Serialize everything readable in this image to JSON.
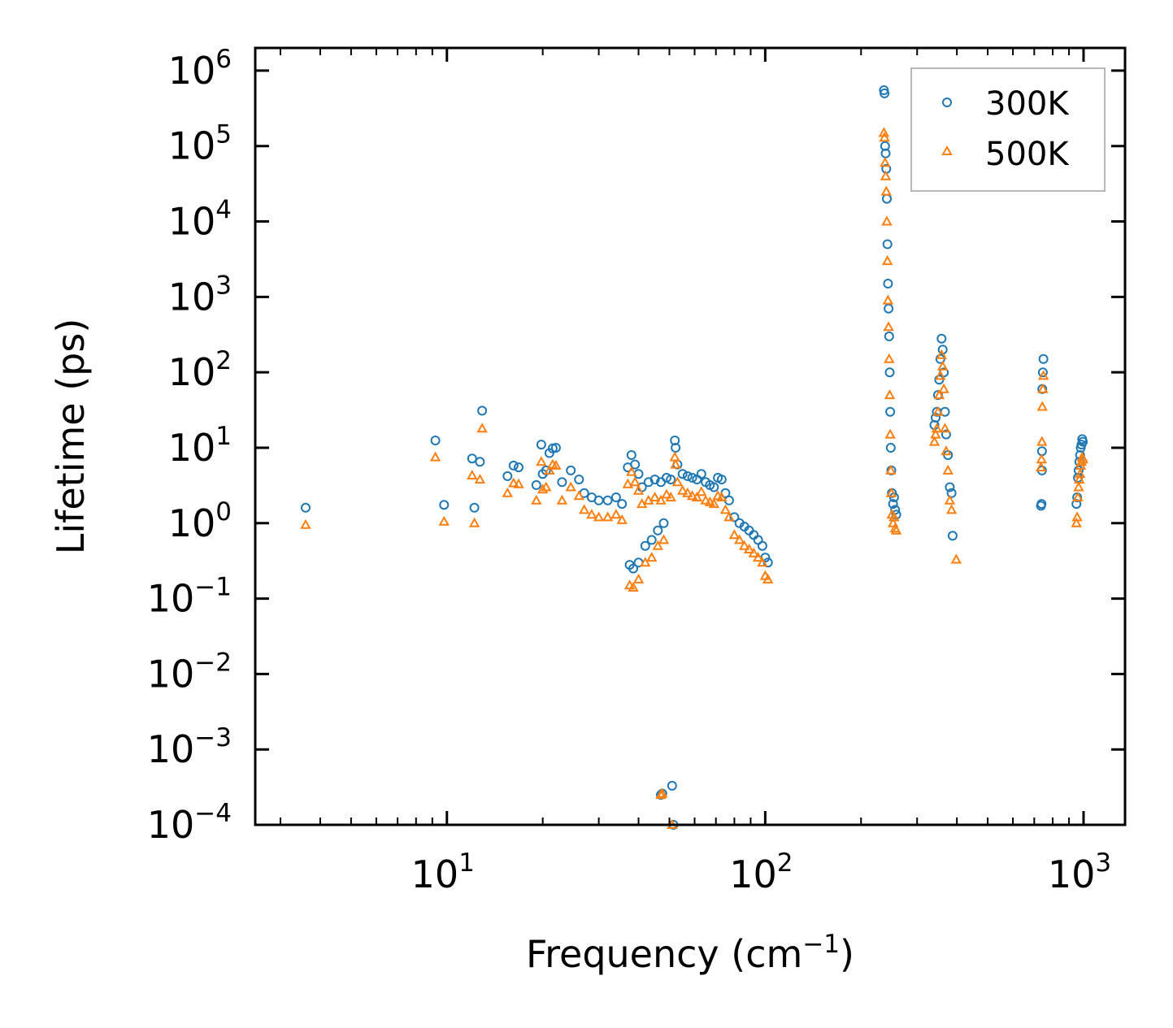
{
  "chart_data": {
    "type": "scatter",
    "xscale": "log",
    "yscale": "log",
    "xlim": [
      2.5,
      1350
    ],
    "ylim": [
      0.0001,
      2000000
    ],
    "xlabel": "Frequency (cm",
    "xlabel_sup": "−1",
    "xlabel_close": ")",
    "ylabel": "Lifetime (ps)",
    "x_ticks": [
      {
        "value": 10,
        "base": "10",
        "exp": "1"
      },
      {
        "value": 100,
        "base": "10",
        "exp": "2"
      },
      {
        "value": 1000,
        "base": "10",
        "exp": "3"
      }
    ],
    "y_ticks": [
      {
        "value": 1000000,
        "base": "10",
        "exp": "6"
      },
      {
        "value": 100000,
        "base": "10",
        "exp": "5"
      },
      {
        "value": 10000,
        "base": "10",
        "exp": "4"
      },
      {
        "value": 1000,
        "base": "10",
        "exp": "3"
      },
      {
        "value": 100,
        "base": "10",
        "exp": "2"
      },
      {
        "value": 10,
        "base": "10",
        "exp": "1"
      },
      {
        "value": 1,
        "base": "10",
        "exp": "0"
      },
      {
        "value": 0.1,
        "base": "10",
        "exp": "−1"
      },
      {
        "value": 0.01,
        "base": "10",
        "exp": "−2"
      },
      {
        "value": 0.001,
        "base": "10",
        "exp": "−3"
      },
      {
        "value": 0.0001,
        "base": "10",
        "exp": "−4"
      }
    ],
    "legend": {
      "placement": "top-right"
    },
    "series": [
      {
        "name": "300K",
        "color": "#1f77b4",
        "marker": "circle",
        "x": [
          3.6,
          9.2,
          9.8,
          12.0,
          12.2,
          12.7,
          12.9,
          15.5,
          16.2,
          16.8,
          19.1,
          19.8,
          20.0,
          20.5,
          21.0,
          21.5,
          22.0,
          23.0,
          24.5,
          26.0,
          27.0,
          28.5,
          30.0,
          32.0,
          34.0,
          35.5,
          37.0,
          38.0,
          39.0,
          40.0,
          41.0,
          43.0,
          45.0,
          47.0,
          49.0,
          50.5,
          52.0,
          52.3,
          53.0,
          55.0,
          57.0,
          59.0,
          61.0,
          63.0,
          65.0,
          67.0,
          69.0,
          71.0,
          73.0,
          75.0,
          77.0,
          80.0,
          83.0,
          86.0,
          89.0,
          92.0,
          95.0,
          98.0,
          100.0,
          102.0,
          37.5,
          38.5,
          40.0,
          42.0,
          44.0,
          46.0,
          48.0,
          47.0,
          47.5,
          51.0,
          51.5,
          236.0,
          237.0,
          238.0,
          239.0,
          240.0,
          241.0,
          242.0,
          243.0,
          244.0,
          245.0,
          246.0,
          247.0,
          248.0,
          249.0,
          250.0,
          252.0,
          254.0,
          256.0,
          258.0,
          340.0,
          343.0,
          346.0,
          349.0,
          352.0,
          355.0,
          358.0,
          361.0,
          364.0,
          367.0,
          370.0,
          375.0,
          380.0,
          385.0,
          388.0,
          735.0,
          738.0,
          740.0,
          742.0,
          745.0,
          748.0,
          740.0,
          950.0,
          955.0,
          960.0,
          965.0,
          970.0,
          975.0,
          980.0,
          985.0,
          990.0,
          995.0
        ],
        "y": [
          1.6,
          12.5,
          1.75,
          7.2,
          1.6,
          6.5,
          31,
          4.2,
          5.8,
          5.5,
          3.2,
          11,
          4.5,
          5.0,
          8.5,
          9.8,
          10.0,
          3.5,
          5.0,
          3.8,
          2.5,
          2.2,
          2.0,
          2.0,
          2.2,
          1.8,
          5.5,
          8.0,
          6.0,
          4.5,
          3.0,
          3.5,
          3.8,
          3.5,
          4.0,
          3.8,
          12.5,
          10.0,
          6.0,
          4.5,
          4.2,
          4.0,
          3.8,
          4.5,
          3.5,
          3.2,
          3.0,
          4.0,
          3.8,
          2.5,
          2.0,
          1.2,
          1.0,
          0.9,
          0.8,
          0.7,
          0.6,
          0.5,
          0.35,
          0.3,
          0.28,
          0.25,
          0.3,
          0.5,
          0.6,
          0.8,
          1.0,
          0.00025,
          0.00026,
          0.00033,
          0.0001,
          550000,
          500000,
          100000,
          80000,
          50000,
          20000,
          5000,
          1500,
          700,
          300,
          100,
          30,
          10,
          5,
          2.5,
          1.8,
          2.2,
          1.5,
          1.3,
          20,
          25,
          30,
          50,
          80,
          150,
          280,
          200,
          100,
          30,
          15,
          8,
          3,
          2.5,
          0.68,
          1.7,
          1.8,
          9,
          60,
          100,
          150,
          5,
          1.8,
          2.2,
          4,
          5,
          6.5,
          8,
          10,
          11,
          13,
          12
        ],
        "legend_label": "300K"
      },
      {
        "name": "500K",
        "color": "#ff7f0e",
        "marker": "triangle",
        "x": [
          3.6,
          9.2,
          9.8,
          12.0,
          12.2,
          12.7,
          12.9,
          15.5,
          16.2,
          16.8,
          19.1,
          19.8,
          20.0,
          20.5,
          21.0,
          21.5,
          22.0,
          23.0,
          24.5,
          26.0,
          27.0,
          28.5,
          30.0,
          32.0,
          34.0,
          35.5,
          37.0,
          38.0,
          39.0,
          40.0,
          41.0,
          43.0,
          45.0,
          47.0,
          49.0,
          50.5,
          52.0,
          52.3,
          53.0,
          55.0,
          57.0,
          59.0,
          61.0,
          63.0,
          65.0,
          67.0,
          69.0,
          71.0,
          73.0,
          75.0,
          77.0,
          80.0,
          83.0,
          86.0,
          89.0,
          92.0,
          95.0,
          98.0,
          100.0,
          102.0,
          37.5,
          38.5,
          40.0,
          42.0,
          44.0,
          46.0,
          48.0,
          47.0,
          47.5,
          51.0,
          236.0,
          237.0,
          238.0,
          239.0,
          240.0,
          241.0,
          242.0,
          243.0,
          244.0,
          245.0,
          246.0,
          247.0,
          248.0,
          249.0,
          250.0,
          252.0,
          254.0,
          256.0,
          258.0,
          340.0,
          343.0,
          346.0,
          349.0,
          352.0,
          355.0,
          358.0,
          361.0,
          364.0,
          367.0,
          370.0,
          375.0,
          380.0,
          385.0,
          398.0,
          735.0,
          738.0,
          740.0,
          742.0,
          745.0,
          748.0,
          950.0,
          955.0,
          960.0,
          965.0,
          970.0,
          975.0,
          980.0,
          985.0,
          990.0,
          995.0
        ],
        "y": [
          0.95,
          7.5,
          1.05,
          4.3,
          1.0,
          3.8,
          18,
          2.5,
          3.4,
          3.3,
          2.0,
          6.5,
          2.8,
          3.0,
          5.0,
          6.0,
          5.8,
          2.0,
          3.0,
          2.3,
          1.5,
          1.3,
          1.2,
          1.2,
          1.3,
          1.1,
          3.3,
          4.8,
          3.5,
          2.7,
          1.8,
          2.0,
          2.2,
          2.0,
          2.4,
          2.2,
          7.5,
          6.0,
          3.5,
          2.7,
          2.5,
          2.3,
          2.2,
          2.6,
          2.0,
          1.9,
          1.8,
          2.3,
          2.2,
          1.5,
          1.2,
          0.7,
          0.6,
          0.5,
          0.45,
          0.4,
          0.35,
          0.3,
          0.2,
          0.18,
          0.15,
          0.14,
          0.18,
          0.3,
          0.35,
          0.5,
          0.6,
          0.00025,
          0.00026,
          0.0001,
          150000,
          130000,
          60000,
          40000,
          25000,
          10000,
          3000,
          900,
          400,
          150,
          50,
          15,
          5,
          2.5,
          1.3,
          1.0,
          1.2,
          0.85,
          0.8,
          12,
          15,
          18,
          30,
          50,
          90,
          170,
          120,
          60,
          18,
          9,
          5,
          2.0,
          1.5,
          0.33,
          5.5,
          7,
          12,
          35,
          60,
          90,
          1.0,
          1.2,
          2.2,
          3.0,
          3.8,
          4.5,
          5.8,
          6.5,
          7.5,
          7.0
        ],
        "legend_label": "500K"
      }
    ]
  }
}
